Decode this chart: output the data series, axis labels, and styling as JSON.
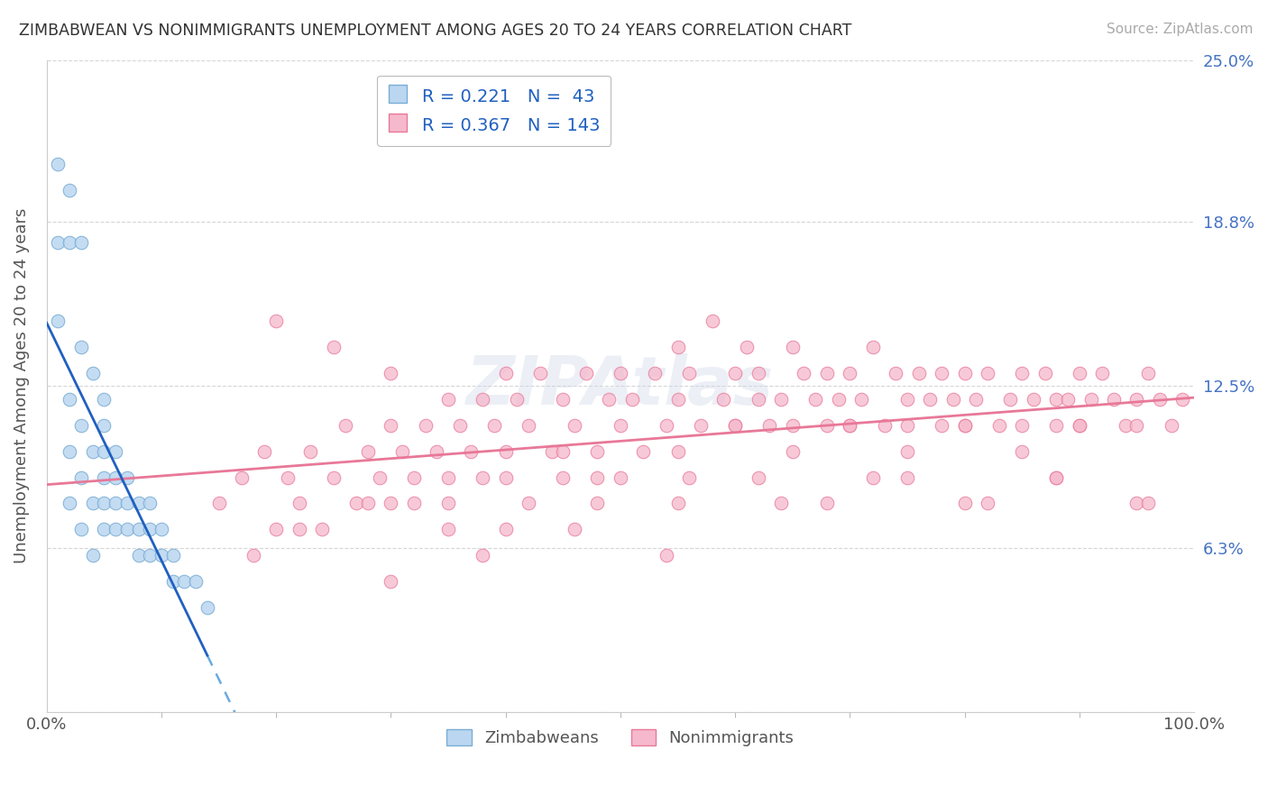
{
  "title": "ZIMBABWEAN VS NONIMMIGRANTS UNEMPLOYMENT AMONG AGES 20 TO 24 YEARS CORRELATION CHART",
  "source": "Source: ZipAtlas.com",
  "ylabel": "Unemployment Among Ages 20 to 24 years",
  "xlim": [
    0,
    100
  ],
  "ylim": [
    0,
    25
  ],
  "right_yticklabels": [
    "",
    "6.3%",
    "12.5%",
    "18.8%",
    "25.0%"
  ],
  "right_yticks": [
    0,
    6.3,
    12.5,
    18.8,
    25.0
  ],
  "zimbabwean_color": "#bad6f0",
  "nonimmigrant_color": "#f5b8cc",
  "zimbabwean_edge": "#7aadd4",
  "nonimmigrant_edge": "#e87898",
  "trend_blue_solid_color": "#2060c0",
  "trend_blue_dash_color": "#6aaae0",
  "trend_pink_color": "#e87898",
  "grid_color": "#cccccc",
  "background_color": "#ffffff",
  "watermark": "ZIPAtlas",
  "zim_x": [
    1,
    1,
    1,
    2,
    2,
    2,
    2,
    2,
    3,
    3,
    3,
    3,
    3,
    4,
    4,
    4,
    4,
    5,
    5,
    5,
    5,
    5,
    5,
    6,
    6,
    6,
    6,
    7,
    7,
    7,
    8,
    8,
    8,
    9,
    9,
    9,
    10,
    10,
    11,
    11,
    12,
    13,
    14
  ],
  "zim_y": [
    21,
    18,
    15,
    20,
    18,
    12,
    10,
    8,
    18,
    14,
    11,
    9,
    7,
    13,
    10,
    8,
    6,
    12,
    11,
    10,
    9,
    8,
    7,
    10,
    9,
    8,
    7,
    9,
    8,
    7,
    8,
    7,
    6,
    8,
    7,
    6,
    7,
    6,
    6,
    5,
    5,
    5,
    4
  ],
  "non_x": [
    15,
    17,
    19,
    20,
    21,
    22,
    23,
    25,
    26,
    27,
    28,
    29,
    30,
    30,
    31,
    32,
    33,
    34,
    35,
    35,
    36,
    37,
    38,
    38,
    39,
    40,
    40,
    41,
    42,
    43,
    44,
    45,
    45,
    46,
    47,
    48,
    49,
    50,
    50,
    51,
    52,
    53,
    54,
    55,
    55,
    56,
    57,
    58,
    59,
    60,
    60,
    61,
    62,
    62,
    63,
    64,
    65,
    65,
    66,
    67,
    68,
    68,
    69,
    70,
    70,
    71,
    72,
    73,
    74,
    75,
    75,
    76,
    77,
    78,
    78,
    79,
    80,
    80,
    81,
    82,
    83,
    84,
    85,
    85,
    86,
    87,
    88,
    88,
    89,
    90,
    90,
    91,
    92,
    93,
    94,
    95,
    96,
    97,
    98,
    99,
    20,
    25,
    30,
    35,
    40,
    45,
    50,
    55,
    60,
    65,
    70,
    75,
    80,
    85,
    90,
    95,
    22,
    28,
    35,
    42,
    48,
    55,
    62,
    68,
    75,
    82,
    88,
    95,
    18,
    24,
    32,
    40,
    48,
    56,
    64,
    72,
    80,
    88,
    96,
    30,
    38,
    46,
    54
  ],
  "non_y": [
    8,
    9,
    10,
    7,
    9,
    8,
    10,
    9,
    11,
    8,
    10,
    9,
    11,
    8,
    10,
    9,
    11,
    10,
    12,
    9,
    11,
    10,
    12,
    9,
    11,
    13,
    10,
    12,
    11,
    13,
    10,
    12,
    9,
    11,
    13,
    10,
    12,
    11,
    13,
    12,
    10,
    13,
    11,
    14,
    12,
    13,
    11,
    15,
    12,
    13,
    11,
    14,
    12,
    13,
    11,
    12,
    14,
    11,
    13,
    12,
    11,
    13,
    12,
    13,
    11,
    12,
    14,
    11,
    13,
    12,
    11,
    13,
    12,
    11,
    13,
    12,
    13,
    11,
    12,
    13,
    11,
    12,
    13,
    11,
    12,
    13,
    12,
    11,
    12,
    13,
    11,
    12,
    13,
    12,
    11,
    12,
    13,
    12,
    11,
    12,
    15,
    14,
    13,
    8,
    9,
    10,
    9,
    10,
    11,
    10,
    11,
    10,
    11,
    10,
    11,
    11,
    7,
    8,
    7,
    8,
    9,
    8,
    9,
    8,
    9,
    8,
    9,
    8,
    6,
    7,
    8,
    7,
    8,
    9,
    8,
    9,
    8,
    9,
    8,
    5,
    6,
    7,
    6
  ]
}
